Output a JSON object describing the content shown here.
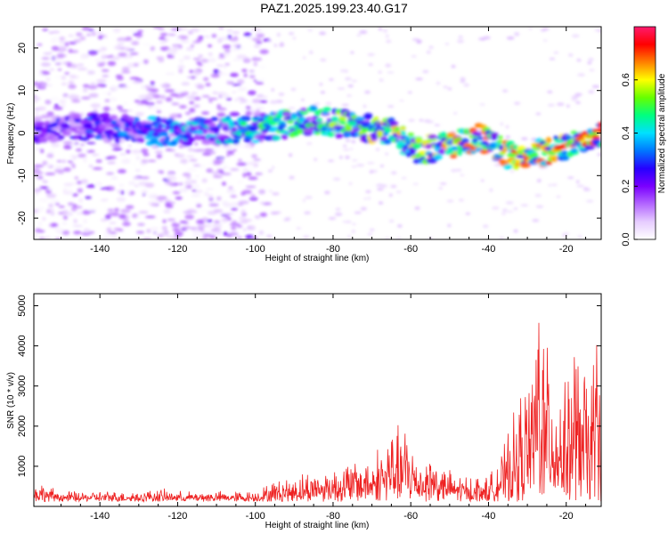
{
  "title": "PAZ1.2025.199.23.40.G17",
  "chart_data": [
    {
      "type": "heatmap",
      "xlabel": "Height of straight line (km)",
      "ylabel": "Frequency (Hz)",
      "colorbar_label": "Normalized spectral amplitude",
      "xlim": [
        -157,
        -11
      ],
      "ylim": [
        -25,
        25
      ],
      "xticks": [
        -140,
        -120,
        -100,
        -80,
        -60,
        -40,
        -20
      ],
      "yticks": [
        -20,
        -10,
        0,
        10,
        20
      ],
      "colorbar_lim": [
        0,
        0.8
      ],
      "colorbar_ticks": [
        0.0,
        0.2,
        0.4,
        0.6
      ],
      "colormap": [
        "#ffffff",
        "#e6ccff",
        "#b366ff",
        "#7a00ff",
        "#2600ff",
        "#0077ff",
        "#00e0ff",
        "#00ff80",
        "#66ff00",
        "#ffff00",
        "#ff8000",
        "#ff0000",
        "#ff1a6e"
      ],
      "ridge": [
        {
          "x": -155,
          "y": 1
        },
        {
          "x": -140,
          "y": 1.5
        },
        {
          "x": -120,
          "y": 0
        },
        {
          "x": -100,
          "y": 1
        },
        {
          "x": -85,
          "y": 3
        },
        {
          "x": -75,
          "y": 2
        },
        {
          "x": -65,
          "y": 0
        },
        {
          "x": -58,
          "y": -4
        },
        {
          "x": -50,
          "y": -3
        },
        {
          "x": -42,
          "y": -1
        },
        {
          "x": -35,
          "y": -5
        },
        {
          "x": -28,
          "y": -5
        },
        {
          "x": -20,
          "y": -3
        },
        {
          "x": -12,
          "y": 0
        }
      ]
    },
    {
      "type": "line",
      "xlabel": "Height of straight line (km)",
      "ylabel": "SNR (10 * v/v)",
      "xlim": [
        -157,
        -11
      ],
      "ylim": [
        0,
        5300
      ],
      "xticks": [
        -140,
        -120,
        -100,
        -80,
        -60,
        -40,
        -20
      ],
      "yticks": [
        1000,
        2000,
        3000,
        4000,
        5000
      ],
      "color": "#ee2222",
      "series": [
        {
          "x": [
            -157,
            -150,
            -140,
            -130,
            -125,
            -120,
            -110,
            -100,
            -95,
            -90,
            -85,
            -80,
            -75,
            -70,
            -66,
            -62,
            -58,
            -55,
            -50,
            -45,
            -40,
            -37,
            -34,
            -31,
            -29,
            -27,
            -25,
            -23,
            -20,
            -18,
            -16,
            -14,
            -12,
            -11
          ],
          "values": [
            400,
            200,
            200,
            200,
            250,
            200,
            200,
            200,
            400,
            500,
            600,
            700,
            800,
            900,
            1300,
            1500,
            900,
            1000,
            600,
            500,
            500,
            900,
            1500,
            2300,
            2800,
            4500,
            3000,
            2700,
            2200,
            3200,
            2800,
            2600,
            3700,
            2800
          ]
        }
      ]
    }
  ]
}
